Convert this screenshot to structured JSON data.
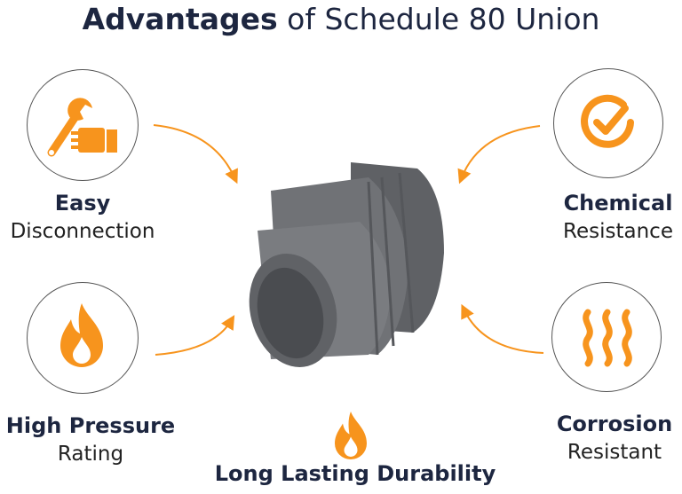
{
  "title": {
    "bold": "Advantages",
    "rest": " of Schedule 80 Union"
  },
  "features": [
    {
      "title": "Easy",
      "subtitle": "Disconnection",
      "icon": "wrench-hand-icon"
    },
    {
      "title": "Chemical",
      "subtitle": "Resistance",
      "icon": "checkmark-circle-icon"
    },
    {
      "title": "High Pressure",
      "subtitle": "Rating",
      "icon": "flame-icon"
    },
    {
      "title": "Corrosion",
      "subtitle": "Resistant",
      "icon": "wavy-lines-icon"
    },
    {
      "title": "Long Lasting Durability",
      "icon": "flame-icon"
    }
  ],
  "colors": {
    "accent": "#f7941d",
    "text": "#1d2640",
    "product": "#6d6f73"
  }
}
